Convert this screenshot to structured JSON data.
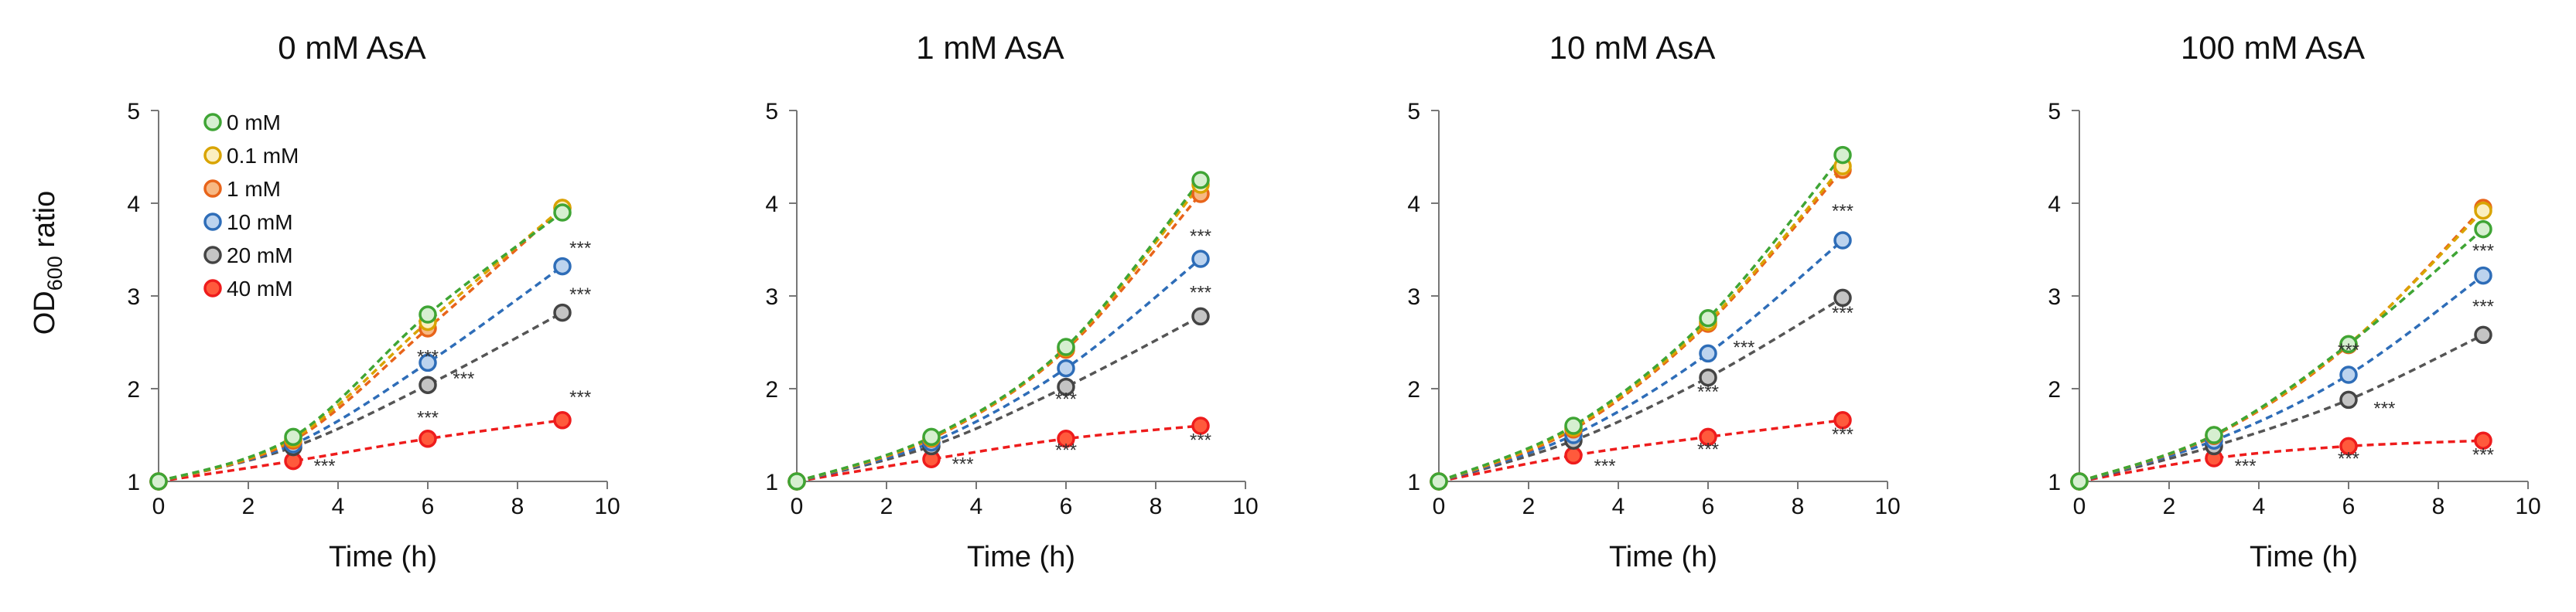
{
  "ylabel_main": "OD",
  "ylabel_sub": "600",
  "ylabel_tail": " ratio",
  "series_colors": {
    "0 mM": {
      "line": "#3fa535",
      "fill": "#d6efd0",
      "stroke": "#3fa535"
    },
    "0.1 mM": {
      "line": "#d9a400",
      "fill": "#fbefc0",
      "stroke": "#d9a400"
    },
    "1 mM": {
      "line": "#e8641a",
      "fill": "#f7b883",
      "stroke": "#e8641a"
    },
    "10 mM": {
      "line": "#2e6db8",
      "fill": "#bcd3ee",
      "stroke": "#2e6db8"
    },
    "20 mM": {
      "line": "#555555",
      "fill": "#c4c4c4",
      "stroke": "#444444"
    },
    "40 mM": {
      "line": "#ee1c1c",
      "fill": "#ff5a3c",
      "stroke": "#ee1c1c"
    }
  },
  "chart_data": [
    {
      "type": "line",
      "title": "0 mM AsA",
      "xlabel": "Time (h)",
      "ylabel": "OD600 ratio",
      "xlim": [
        0,
        10
      ],
      "ylim": [
        1,
        5
      ],
      "xticks": [
        0,
        2,
        4,
        6,
        8,
        10
      ],
      "yticks": [
        1,
        2,
        3,
        4,
        5
      ],
      "legend": "top-left",
      "x": [
        0,
        3,
        6,
        9
      ],
      "series": [
        {
          "name": "0 mM",
          "values": [
            1,
            1.48,
            2.8,
            3.9
          ]
        },
        {
          "name": "0.1 mM",
          "values": [
            1,
            1.46,
            2.72,
            3.95
          ]
        },
        {
          "name": "1 mM",
          "values": [
            1,
            1.44,
            2.65,
            3.95
          ]
        },
        {
          "name": "10 mM",
          "values": [
            1,
            1.4,
            2.28,
            3.32
          ]
        },
        {
          "name": "20 mM",
          "values": [
            1,
            1.37,
            2.04,
            2.82
          ]
        },
        {
          "name": "40 mM",
          "values": [
            1,
            1.22,
            1.46,
            1.66
          ]
        }
      ],
      "annotations": [
        {
          "text": "***",
          "x": 6,
          "y": 2.28,
          "series": "10 mM"
        },
        {
          "text": "***",
          "x": 9.4,
          "y": 3.45,
          "series": "10 mM"
        },
        {
          "text": "***",
          "x": 6.8,
          "y": 2.04,
          "series": "20 mM"
        },
        {
          "text": "***",
          "x": 9.4,
          "y": 2.95,
          "series": "20 mM"
        },
        {
          "text": "***",
          "x": 3.7,
          "y": 1.1,
          "series": "40 mM"
        },
        {
          "text": "***",
          "x": 6,
          "y": 1.62,
          "series": "40 mM"
        },
        {
          "text": "***",
          "x": 9.4,
          "y": 1.84,
          "series": "40 mM"
        }
      ]
    },
    {
      "type": "line",
      "title": "1 mM AsA",
      "xlabel": "Time (h)",
      "ylabel": "OD600 ratio",
      "xlim": [
        0,
        10
      ],
      "ylim": [
        1,
        5
      ],
      "xticks": [
        0,
        2,
        4,
        6,
        8,
        10
      ],
      "yticks": [
        1,
        2,
        3,
        4,
        5
      ],
      "x": [
        0,
        3,
        6,
        9
      ],
      "series": [
        {
          "name": "0 mM",
          "values": [
            1,
            1.48,
            2.45,
            4.25
          ]
        },
        {
          "name": "0.1 mM",
          "values": [
            1,
            1.47,
            2.44,
            4.2
          ]
        },
        {
          "name": "1 mM",
          "values": [
            1,
            1.46,
            2.42,
            4.1
          ]
        },
        {
          "name": "10 mM",
          "values": [
            1,
            1.42,
            2.22,
            3.4
          ]
        },
        {
          "name": "20 mM",
          "values": [
            1,
            1.38,
            2.02,
            2.78
          ]
        },
        {
          "name": "40 mM",
          "values": [
            1,
            1.24,
            1.46,
            1.6
          ]
        }
      ],
      "annotations": [
        {
          "text": "***",
          "x": 9,
          "y": 3.58,
          "series": "10 mM"
        },
        {
          "text": "***",
          "x": 9,
          "y": 2.97,
          "series": "20 mM"
        },
        {
          "text": "***",
          "x": 6,
          "y": 1.82,
          "series": "20 mM"
        },
        {
          "text": "***",
          "x": 3.7,
          "y": 1.12,
          "series": "40 mM"
        },
        {
          "text": "***",
          "x": 6,
          "y": 1.27,
          "series": "40 mM"
        },
        {
          "text": "***",
          "x": 9,
          "y": 1.38,
          "series": "40 mM"
        }
      ]
    },
    {
      "type": "line",
      "title": "10 mM AsA",
      "xlabel": "Time (h)",
      "ylabel": "OD600 ratio",
      "xlim": [
        0,
        10
      ],
      "ylim": [
        1,
        5
      ],
      "xticks": [
        0,
        2,
        4,
        6,
        8,
        10
      ],
      "yticks": [
        1,
        2,
        3,
        4,
        5
      ],
      "x": [
        0,
        3,
        6,
        9
      ],
      "series": [
        {
          "name": "0 mM",
          "values": [
            1,
            1.6,
            2.76,
            4.52
          ]
        },
        {
          "name": "0.1 mM",
          "values": [
            1,
            1.58,
            2.72,
            4.4
          ]
        },
        {
          "name": "1 mM",
          "values": [
            1,
            1.56,
            2.7,
            4.36
          ]
        },
        {
          "name": "10 mM",
          "values": [
            1,
            1.5,
            2.38,
            3.6
          ]
        },
        {
          "name": "20 mM",
          "values": [
            1,
            1.44,
            2.12,
            2.98
          ]
        },
        {
          "name": "40 mM",
          "values": [
            1,
            1.28,
            1.48,
            1.66
          ]
        }
      ],
      "annotations": [
        {
          "text": "***",
          "x": 9,
          "y": 3.85,
          "series": "10 mM"
        },
        {
          "text": "***",
          "x": 6.8,
          "y": 2.38,
          "series": "10 mM"
        },
        {
          "text": "***",
          "x": 9,
          "y": 2.75,
          "series": "20 mM"
        },
        {
          "text": "***",
          "x": 6,
          "y": 1.9,
          "series": "20 mM"
        },
        {
          "text": "***",
          "x": 3.7,
          "y": 1.1,
          "series": "40 mM"
        },
        {
          "text": "***",
          "x": 6,
          "y": 1.28,
          "series": "40 mM"
        },
        {
          "text": "***",
          "x": 9,
          "y": 1.44,
          "series": "40 mM"
        }
      ]
    },
    {
      "type": "line",
      "title": "100 mM AsA",
      "xlabel": "Time (h)",
      "ylabel": "OD600 ratio",
      "xlim": [
        0,
        10
      ],
      "ylim": [
        1,
        5
      ],
      "xticks": [
        0,
        2,
        4,
        6,
        8,
        10
      ],
      "yticks": [
        1,
        2,
        3,
        4,
        5
      ],
      "x": [
        0,
        3,
        6,
        9
      ],
      "series": [
        {
          "name": "0 mM",
          "values": [
            1,
            1.5,
            2.48,
            3.72
          ]
        },
        {
          "name": "0.1 mM",
          "values": [
            1,
            1.5,
            2.48,
            3.92
          ]
        },
        {
          "name": "1 mM",
          "values": [
            1,
            1.49,
            2.47,
            3.95
          ]
        },
        {
          "name": "10 mM",
          "values": [
            1,
            1.44,
            2.15,
            3.22
          ]
        },
        {
          "name": "20 mM",
          "values": [
            1,
            1.38,
            1.88,
            2.58
          ]
        },
        {
          "name": "40 mM",
          "values": [
            1,
            1.25,
            1.38,
            1.44
          ]
        }
      ],
      "annotations": [
        {
          "text": "***",
          "x": 9,
          "y": 3.42,
          "series": "10 mM"
        },
        {
          "text": "***",
          "x": 6,
          "y": 2.35,
          "series": "10 mM"
        },
        {
          "text": "***",
          "x": 9,
          "y": 2.82,
          "series": "20 mM"
        },
        {
          "text": "***",
          "x": 6.8,
          "y": 1.72,
          "series": "20 mM"
        },
        {
          "text": "***",
          "x": 3.7,
          "y": 1.1,
          "series": "40 mM"
        },
        {
          "text": "***",
          "x": 6,
          "y": 1.18,
          "series": "40 mM"
        },
        {
          "text": "***",
          "x": 9,
          "y": 1.22,
          "series": "40 mM"
        }
      ]
    }
  ]
}
